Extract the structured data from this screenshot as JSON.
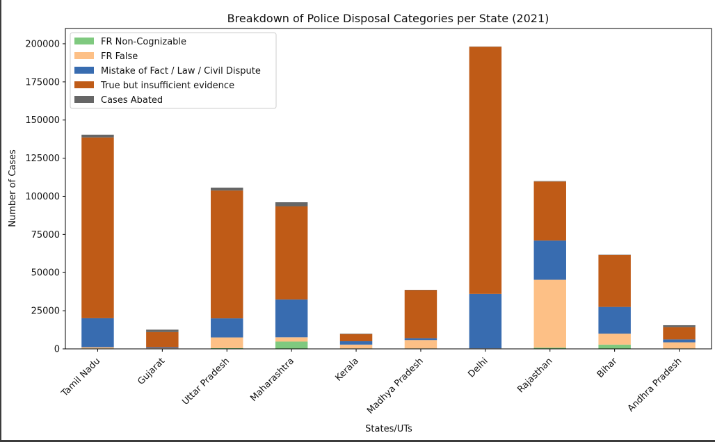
{
  "chart_data": {
    "type": "bar",
    "stacked": true,
    "title": "Breakdown of Police Disposal Categories per State (2021)",
    "xlabel": "States/UTs",
    "ylabel": "Number of Cases",
    "ylim": [
      0,
      210000
    ],
    "yticks": [
      0,
      25000,
      50000,
      75000,
      100000,
      125000,
      150000,
      175000,
      200000
    ],
    "grid": false,
    "legend_position": "top-left",
    "categories": [
      "Tamil Nadu",
      "Gujarat",
      "Uttar Pradesh",
      "Maharashtra",
      "Kerala",
      "Madhya Pradesh",
      "Delhi",
      "Rajasthan",
      "Bihar",
      "Andhra Pradesh"
    ],
    "series": [
      {
        "name": "FR Non-Cognizable",
        "color": "#7fc97f",
        "values": [
          300,
          150,
          500,
          4800,
          300,
          300,
          150,
          800,
          2800,
          300
        ]
      },
      {
        "name": "FR False",
        "color": "#fdc086",
        "values": [
          800,
          250,
          7000,
          2800,
          2500,
          5500,
          200,
          44500,
          7200,
          4000
        ]
      },
      {
        "name": "Mistake of Fact / Law / Civil Dispute",
        "color": "#386cb0",
        "values": [
          19000,
          600,
          12500,
          24800,
          2200,
          1200,
          35700,
          25700,
          17500,
          1900
        ]
      },
      {
        "name": "True but insufficient evidence",
        "color": "#bf5b17",
        "values": [
          118500,
          10000,
          83800,
          61000,
          4700,
          31500,
          162000,
          38700,
          34000,
          8000
        ]
      },
      {
        "name": "Cases Abated",
        "color": "#666666",
        "values": [
          1800,
          1600,
          1900,
          2700,
          300,
          200,
          150,
          300,
          200,
          1300
        ]
      }
    ]
  }
}
